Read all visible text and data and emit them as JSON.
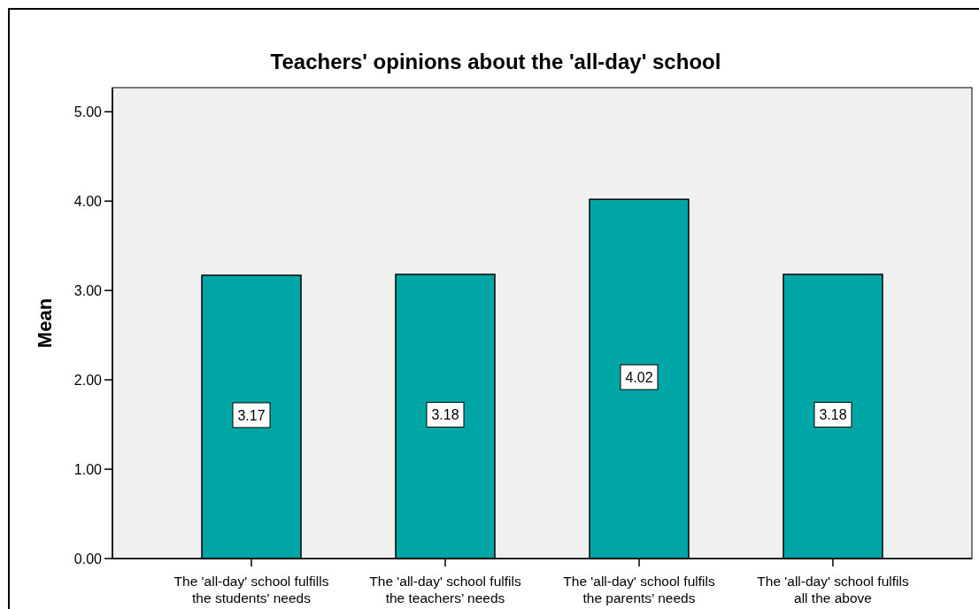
{
  "chart_data": {
    "type": "bar",
    "title": "Teachers' opinions about the 'all-day' school",
    "ylabel": "Mean",
    "categories": [
      "The 'all-day' school fulfills\nthe students' needs",
      "The 'all-day' school fulfils\nthe teachers’ needs",
      "The 'all-day' school fulfils\nthe parents’ needs",
      "The 'all-day' school fulfils\nall the above"
    ],
    "values": [
      3.17,
      3.18,
      4.02,
      3.18
    ],
    "color": "#00a6a6",
    "ylim": [
      0,
      5.27
    ],
    "yticks": [
      {
        "value": 0,
        "label": "0.00"
      },
      {
        "value": 1,
        "label": "1.00"
      },
      {
        "value": 2,
        "label": "2.00"
      },
      {
        "value": 3,
        "label": "3.00"
      },
      {
        "value": 4,
        "label": "4.00"
      },
      {
        "value": 5,
        "label": "5.00"
      }
    ],
    "data_labels": true
  }
}
